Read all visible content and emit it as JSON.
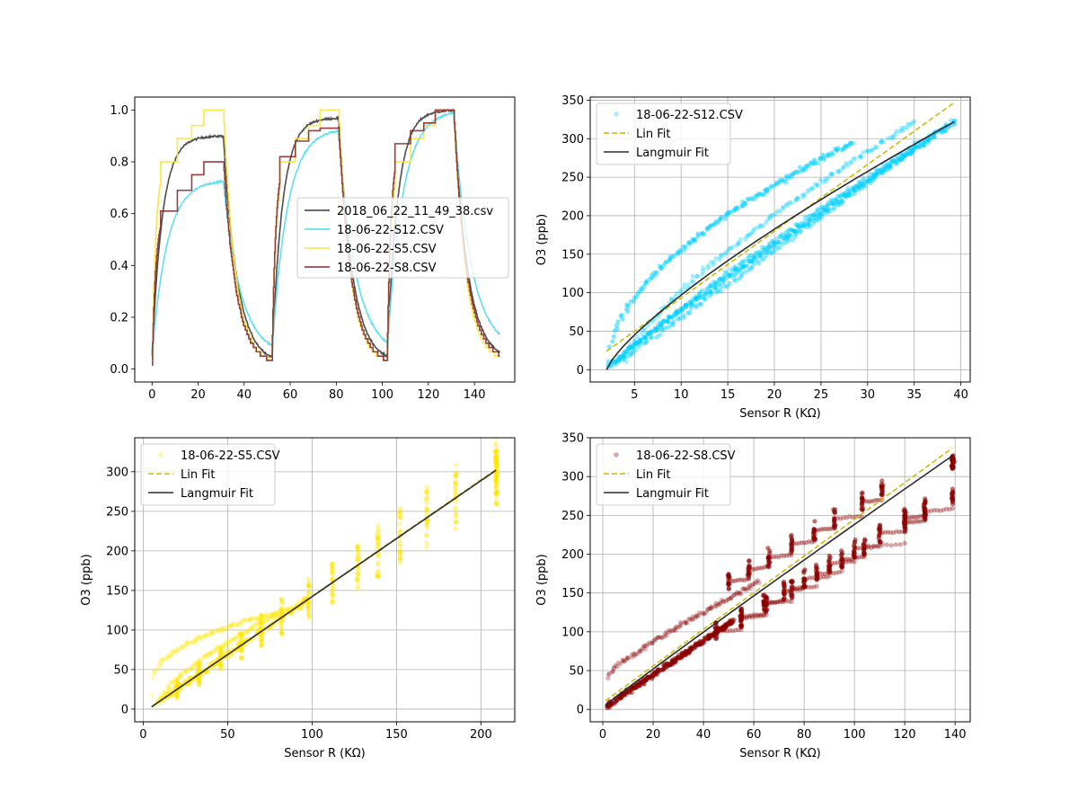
{
  "chart_data": [
    {
      "type": "line",
      "title": "",
      "xlabel": "",
      "ylabel": "",
      "xlim": [
        -7.5,
        157.5
      ],
      "ylim": [
        -0.05,
        1.05
      ],
      "xticks": [
        0,
        20,
        40,
        60,
        80,
        100,
        120,
        140
      ],
      "yticks": [
        0.0,
        0.2,
        0.4,
        0.6,
        0.8,
        1.0
      ],
      "ytick_labels": [
        "0.0",
        "0.2",
        "0.4",
        "0.6",
        "0.8",
        "1.0"
      ],
      "grid": false,
      "legend": "center-right",
      "x_end": 151,
      "cycles": [
        {
          "on": 0,
          "off": 31
        },
        {
          "on": 52,
          "off": 81
        },
        {
          "on": 102,
          "off": 131
        }
      ],
      "series": [
        {
          "name": "2018_06_22_11_49_38.csv",
          "color": "#3a3a3a",
          "style": "smooth",
          "plateaus": [
            0.9,
            0.97,
            1.0
          ],
          "lows": [
            0.05,
            0.02,
            0.02,
            0.03
          ],
          "rise_tau": 4.5,
          "fall_tau": 6.0
        },
        {
          "name": "18-06-22-S12.CSV",
          "color": "#4adbf0",
          "style": "smooth",
          "plateaus": [
            0.73,
            0.93,
            1.0
          ],
          "lows": [
            0.05,
            0.05,
            0.05,
            0.07
          ],
          "rise_tau": 6.5,
          "fall_tau": 7.5
        },
        {
          "name": "18-06-22-S5.CSV",
          "color": "#f7e43a",
          "style": "step",
          "levels": [
            [
              0.8,
              0.89,
              0.94,
              1.0
            ],
            [
              0.8,
              0.89,
              0.94,
              1.0
            ],
            [
              0.8,
              0.89,
              0.94,
              1.0
            ]
          ],
          "lows": [
            0.04,
            0.02,
            0.02,
            0.03
          ],
          "fall_tau": 5.0
        },
        {
          "name": "18-06-22-S8.CSV",
          "color": "#8b2a2a",
          "style": "step",
          "levels": [
            [
              0.61,
              0.69,
              0.75,
              0.8
            ],
            [
              0.82,
              0.88,
              0.92,
              0.93
            ],
            [
              0.87,
              0.92,
              0.95,
              1.0
            ]
          ],
          "lows": [
            0.015,
            0.015,
            0.015,
            0.03
          ],
          "fall_tau": 5.5
        }
      ]
    },
    {
      "type": "scatter",
      "title": "",
      "xlabel": "Sensor R (KΩ)",
      "ylabel": "O3 (ppb)",
      "xlim": [
        0.25,
        41.0
      ],
      "ylim": [
        -16,
        354
      ],
      "xticks": [
        5,
        10,
        15,
        20,
        25,
        30,
        35,
        40
      ],
      "yticks": [
        0,
        50,
        100,
        150,
        200,
        250,
        300,
        350
      ],
      "grid": true,
      "legend": "top-left",
      "series": [
        {
          "name": "18-06-22-S12.CSV",
          "kind": "scatter",
          "color": "#00cfff",
          "x_range": [
            2.2,
            39.2
          ],
          "y_range": [
            0,
            328
          ]
        },
        {
          "name": "Lin Fit",
          "kind": "dashed-line",
          "color": "#c8b800",
          "x": [
            2.0,
            39.3
          ],
          "y": [
            24,
            347
          ]
        },
        {
          "name": "Langmuir Fit",
          "kind": "line",
          "color": "#2b2b2b",
          "x": [
            2.0,
            39.3
          ],
          "y": [
            0,
            322
          ],
          "exponent": 0.78
        }
      ]
    },
    {
      "type": "scatter",
      "title": "",
      "xlabel": "Sensor R (KΩ)",
      "ylabel": "O3 (ppb)",
      "xlim": [
        -5,
        220
      ],
      "ylim": [
        -16,
        343
      ],
      "xticks": [
        0,
        50,
        100,
        150,
        200
      ],
      "yticks": [
        0,
        50,
        100,
        150,
        200,
        250,
        300
      ],
      "grid": true,
      "legend": "top-left",
      "series": [
        {
          "name": "18-06-22-S5.CSV",
          "kind": "scatter",
          "color": "#ffe600",
          "x_range": [
            4,
            209
          ],
          "y_range": [
            3,
            327
          ]
        },
        {
          "name": "Lin Fit",
          "kind": "dashed-line",
          "color": "#c8b800",
          "x": [
            5,
            209
          ],
          "y": [
            3,
            303
          ]
        },
        {
          "name": "Langmuir Fit",
          "kind": "line",
          "color": "#2b2b2b",
          "x": [
            5,
            209
          ],
          "y": [
            3,
            302
          ],
          "exponent": 1.0
        }
      ]
    },
    {
      "type": "scatter",
      "title": "",
      "xlabel": "Sensor R (KΩ)",
      "ylabel": "O3 (ppb)",
      "xlim": [
        -5,
        146
      ],
      "ylim": [
        -16,
        350
      ],
      "xticks": [
        0,
        20,
        40,
        60,
        80,
        100,
        120,
        140
      ],
      "yticks": [
        0,
        50,
        100,
        150,
        200,
        250,
        300,
        350
      ],
      "grid": true,
      "legend": "top-left",
      "series": [
        {
          "name": "18-06-22-S8.CSV",
          "kind": "scatter",
          "color": "#8b0000",
          "x_range": [
            2,
            139
          ],
          "y_range": [
            5,
            327
          ]
        },
        {
          "name": "Lin Fit",
          "kind": "dashed-line",
          "color": "#c8b800",
          "x": [
            1,
            139
          ],
          "y": [
            11,
            337
          ]
        },
        {
          "name": "Langmuir Fit",
          "kind": "line",
          "color": "#2b2b2b",
          "x": [
            1,
            139
          ],
          "y": [
            5,
            327
          ],
          "exponent": 0.97
        }
      ]
    }
  ]
}
